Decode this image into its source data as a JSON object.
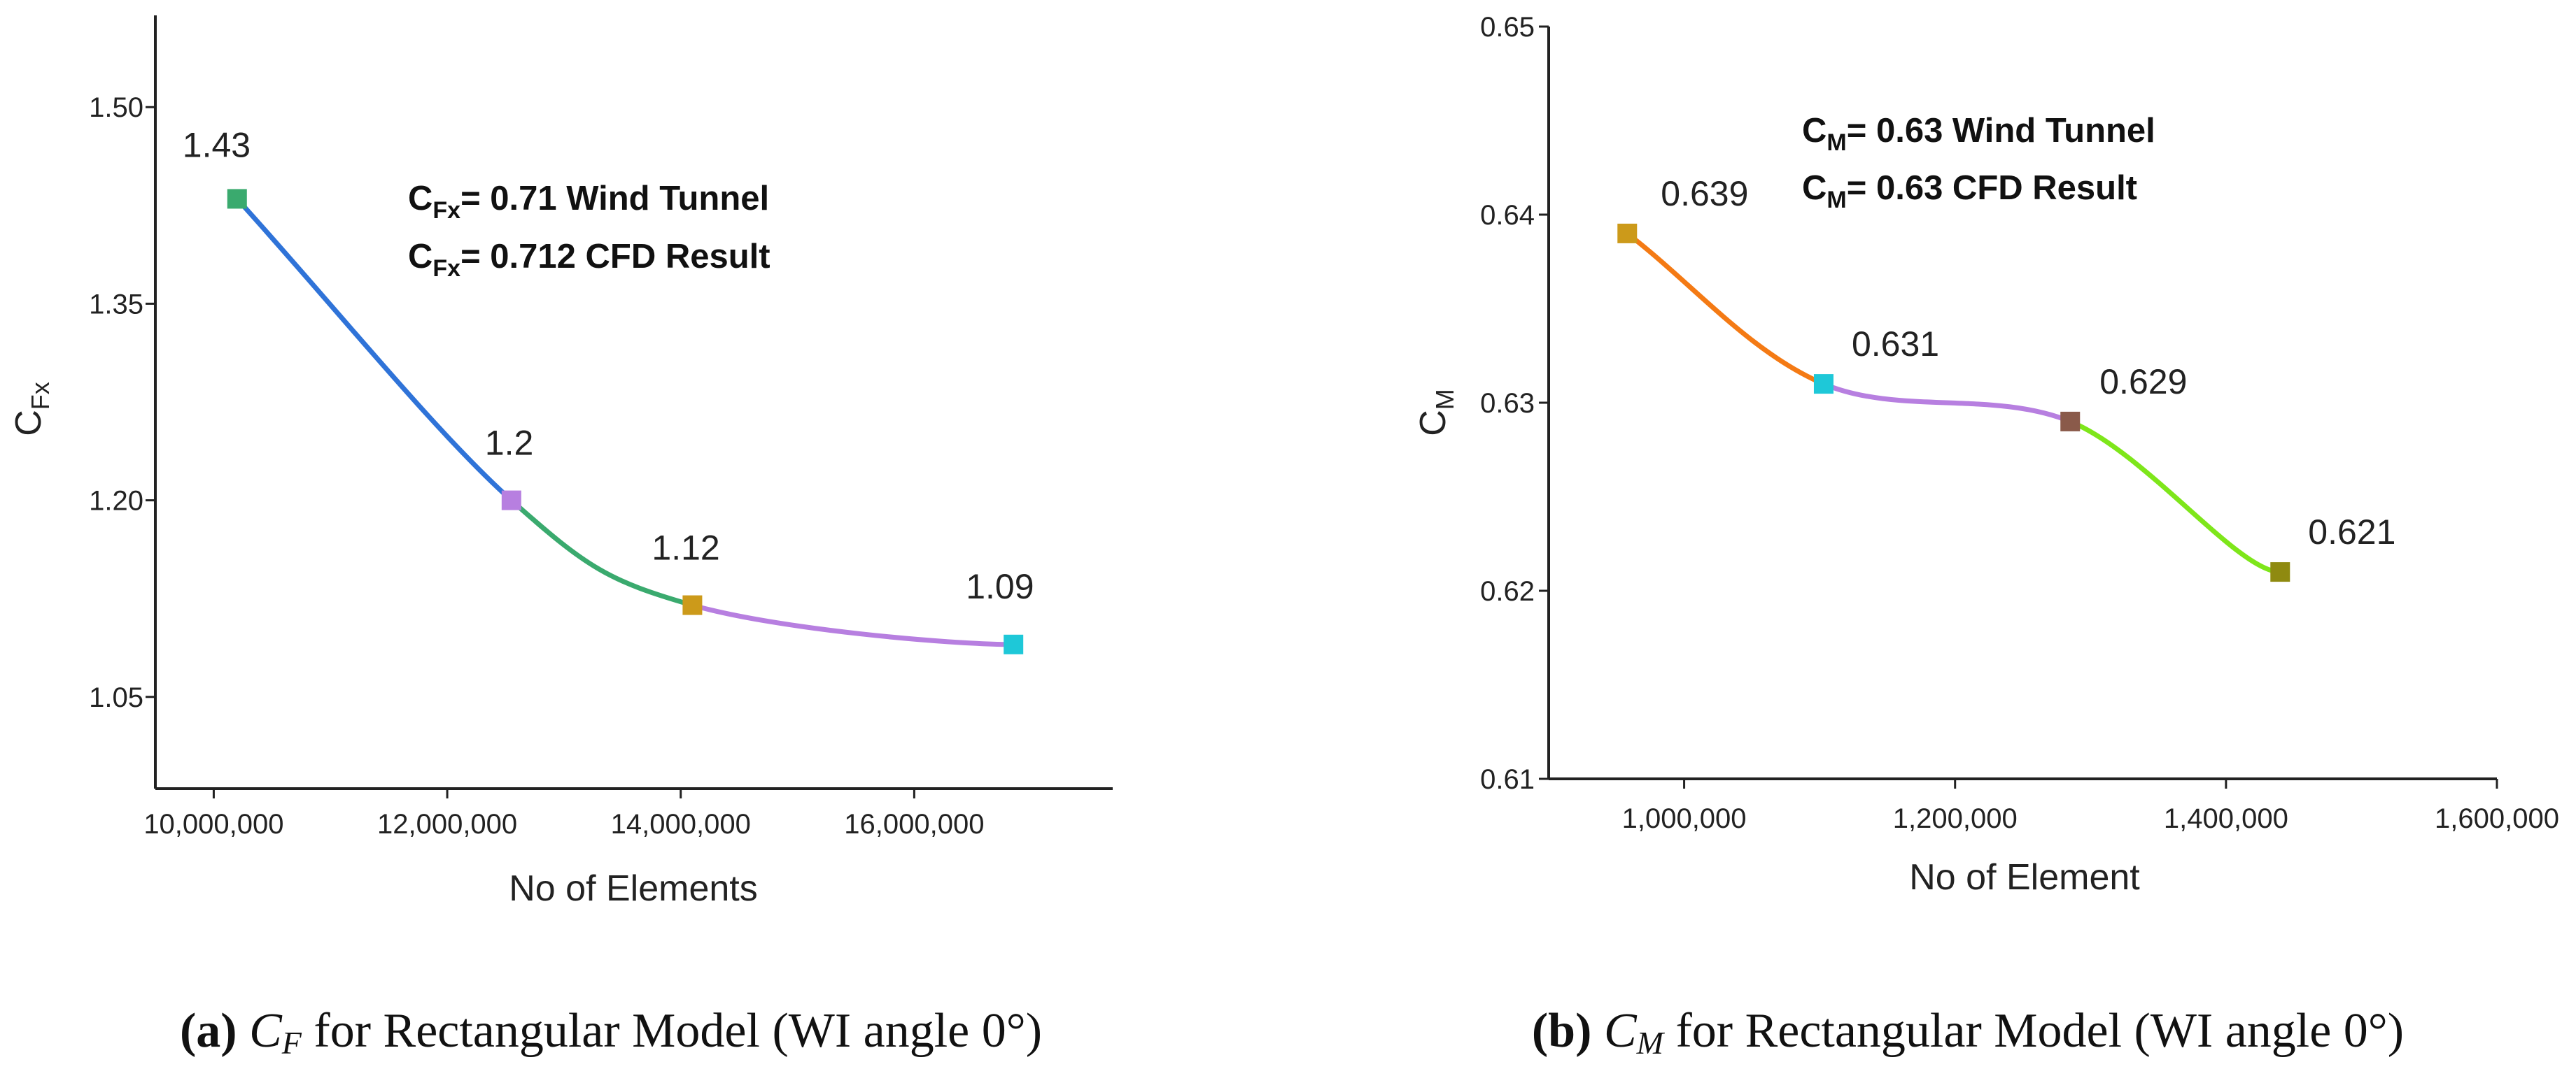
{
  "chart_data": [
    {
      "type": "line",
      "panel": "a",
      "xlabel": "No of Elements",
      "ylabel_main": "C",
      "ylabel_sub": "Fx",
      "xlim": [
        9500000,
        17700000
      ],
      "ylim": [
        0.98,
        1.57
      ],
      "xticks": [
        10000000,
        12000000,
        14000000,
        16000000
      ],
      "xtick_labels": [
        "10,000,000",
        "12,000,000",
        "14,000,000",
        "16,000,000"
      ],
      "yticks": [
        1.05,
        1.2,
        1.35,
        1.5
      ],
      "ytick_labels": [
        "1.05",
        "1.20",
        "1.35",
        "1.50"
      ],
      "x": [
        10200000,
        12550000,
        14100000,
        16850000
      ],
      "values": [
        1.43,
        1.2,
        1.12,
        1.09
      ],
      "data_labels": [
        "1.43",
        "1.2",
        "1.12",
        "1.09"
      ],
      "point_colors": [
        "#3aaa6e",
        "#b77fe0",
        "#cc9a1a",
        "#1ec8d8"
      ],
      "segment_colors": [
        "#2f73d8",
        "#3aaa6e",
        "#b77fe0"
      ],
      "annotations": [
        {
          "main": "C",
          "sub": "Fx",
          "text": "= 0.71 Wind Tunnel"
        },
        {
          "main": "C",
          "sub": "Fx",
          "text": "= 0.712 CFD Result"
        }
      ],
      "caption": {
        "letter": "(a)",
        "sym_main": "C",
        "sym_sub": "F",
        "text": "for Rectangular Model (WI angle 0°)"
      }
    },
    {
      "type": "line",
      "panel": "b",
      "xlabel": "No of Element",
      "ylabel_main": "C",
      "ylabel_sub": "M",
      "xlim": [
        900000,
        1600000
      ],
      "ylim": [
        0.61,
        0.65
      ],
      "xticks": [
        1000000,
        1200000,
        1400000,
        1600000
      ],
      "xtick_labels": [
        "1,000,000",
        "1,200,000",
        "1,400,000",
        "1,600,000"
      ],
      "yticks": [
        0.61,
        0.62,
        0.63,
        0.64,
        0.65
      ],
      "ytick_labels": [
        "0.61",
        "0.62",
        "0.63",
        "0.64",
        "0.65"
      ],
      "x": [
        958000,
        1103000,
        1285000,
        1440000
      ],
      "values": [
        0.639,
        0.631,
        0.629,
        0.621
      ],
      "data_labels": [
        "0.639",
        "0.631",
        "0.629",
        "0.621"
      ],
      "point_colors": [
        "#cc9a1a",
        "#1ec8d8",
        "#8a5a4a",
        "#8f8a10"
      ],
      "segment_colors": [
        "#f47a14",
        "#b77fe0",
        "#7ee61a"
      ],
      "annotations": [
        {
          "main": "C",
          "sub": "M",
          "text": "= 0.63 Wind Tunnel"
        },
        {
          "main": "C",
          "sub": "M",
          "text": "= 0.63 CFD Result"
        }
      ],
      "caption": {
        "letter": "(b)",
        "sym_main": "C",
        "sym_sub": "M",
        "text": "for Rectangular Model (WI angle 0°)"
      }
    }
  ]
}
